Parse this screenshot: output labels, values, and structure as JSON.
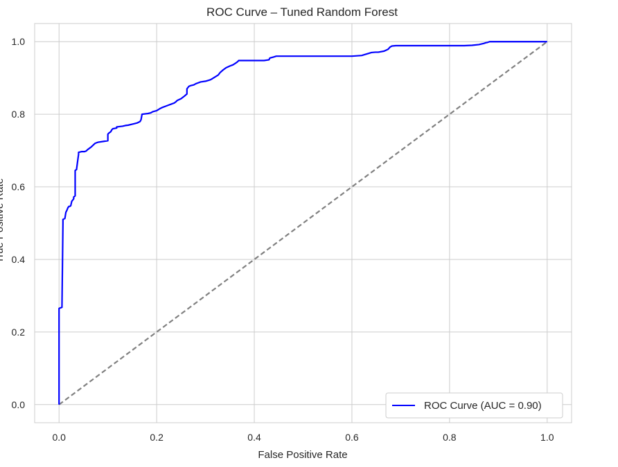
{
  "chart_data": {
    "type": "line",
    "title": "ROC Curve – Tuned Random Forest",
    "xlabel": "False Positive Rate",
    "ylabel": "True Positive Rate",
    "xlim": [
      -0.05,
      1.05
    ],
    "ylim": [
      -0.05,
      1.05
    ],
    "xticks": [
      "0.0",
      "0.2",
      "0.4",
      "0.6",
      "0.8",
      "1.0"
    ],
    "yticks": [
      "0.0",
      "0.2",
      "0.4",
      "0.6",
      "0.8",
      "1.0"
    ],
    "grid": true,
    "legend_position": "lower-right",
    "series": [
      {
        "name": "ROC Curve (AUC = 0.90)",
        "color": "#0000ff",
        "style": "solid",
        "x": [
          0.0,
          0.0,
          0.006,
          0.006,
          0.008,
          0.008,
          0.012,
          0.014,
          0.016,
          0.018,
          0.02,
          0.022,
          0.024,
          0.026,
          0.03,
          0.03,
          0.033,
          0.033,
          0.036,
          0.036,
          0.04,
          0.04,
          0.046,
          0.052,
          0.056,
          0.058,
          0.062,
          0.066,
          0.07,
          0.074,
          0.08,
          0.09,
          0.1,
          0.1,
          0.102,
          0.106,
          0.108,
          0.11,
          0.118,
          0.118,
          0.124,
          0.13,
          0.136,
          0.142,
          0.148,
          0.154,
          0.16,
          0.166,
          0.168,
          0.17,
          0.182,
          0.188,
          0.192,
          0.2,
          0.206,
          0.212,
          0.218,
          0.224,
          0.23,
          0.236,
          0.24,
          0.242,
          0.25,
          0.256,
          0.262,
          0.262,
          0.266,
          0.27,
          0.276,
          0.28,
          0.284,
          0.29,
          0.3,
          0.31,
          0.314,
          0.32,
          0.326,
          0.33,
          0.336,
          0.342,
          0.35,
          0.356,
          0.362,
          0.366,
          0.368,
          0.37,
          0.38,
          0.4,
          0.42,
          0.43,
          0.432,
          0.44,
          0.445,
          0.48,
          0.52,
          0.56,
          0.6,
          0.62,
          0.63,
          0.64,
          0.648,
          0.654,
          0.666,
          0.674,
          0.678,
          0.682,
          0.69,
          0.72,
          0.76,
          0.8,
          0.83,
          0.846,
          0.86,
          0.87,
          0.874,
          0.878,
          0.882,
          0.9,
          0.95,
          1.0
        ],
        "y": [
          0.0,
          0.265,
          0.268,
          0.271,
          0.5,
          0.51,
          0.513,
          0.53,
          0.535,
          0.542,
          0.546,
          0.546,
          0.548,
          0.56,
          0.567,
          0.572,
          0.575,
          0.645,
          0.648,
          0.65,
          0.69,
          0.695,
          0.697,
          0.697,
          0.699,
          0.702,
          0.706,
          0.71,
          0.715,
          0.72,
          0.723,
          0.725,
          0.727,
          0.745,
          0.748,
          0.752,
          0.757,
          0.76,
          0.762,
          0.765,
          0.766,
          0.767,
          0.769,
          0.77,
          0.772,
          0.774,
          0.776,
          0.78,
          0.785,
          0.8,
          0.802,
          0.804,
          0.807,
          0.81,
          0.815,
          0.819,
          0.822,
          0.825,
          0.828,
          0.831,
          0.835,
          0.838,
          0.843,
          0.849,
          0.856,
          0.87,
          0.877,
          0.879,
          0.881,
          0.884,
          0.886,
          0.889,
          0.891,
          0.895,
          0.898,
          0.903,
          0.908,
          0.915,
          0.922,
          0.928,
          0.933,
          0.936,
          0.941,
          0.945,
          0.948,
          0.948,
          0.948,
          0.948,
          0.948,
          0.95,
          0.955,
          0.958,
          0.96,
          0.96,
          0.96,
          0.96,
          0.96,
          0.962,
          0.966,
          0.97,
          0.971,
          0.971,
          0.974,
          0.979,
          0.985,
          0.988,
          0.989,
          0.989,
          0.989,
          0.989,
          0.989,
          0.99,
          0.992,
          0.995,
          0.997,
          0.998,
          1.0,
          1.0,
          1.0,
          1.0
        ]
      },
      {
        "name": "",
        "color": "#808080",
        "style": "dashed",
        "x": [
          0.0,
          1.0
        ],
        "y": [
          0.0,
          1.0
        ]
      }
    ]
  }
}
